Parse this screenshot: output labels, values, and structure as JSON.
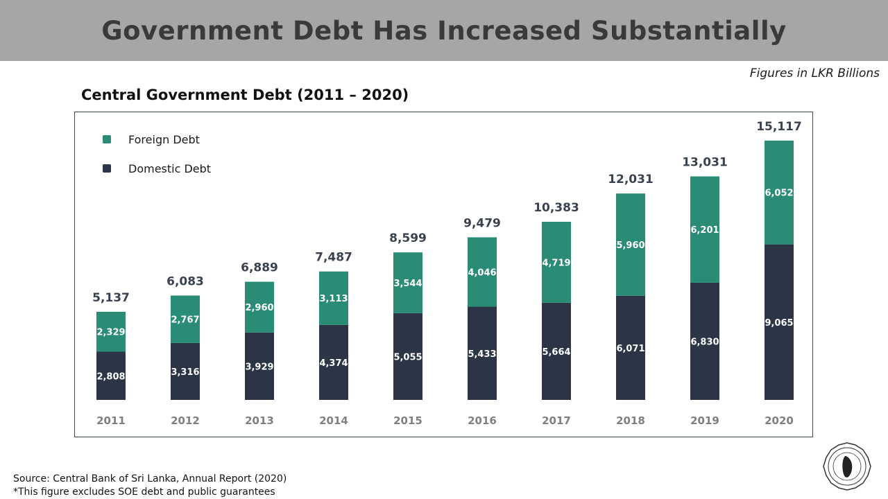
{
  "header": {
    "title": "Government Debt Has Increased Substantially"
  },
  "units_note": "Figures in LKR Billions",
  "footnotes": {
    "source": "Source: Central Bank of Sri Lanka, Annual Report (2020)",
    "note": "*This figure excludes SOE debt and public guarantees"
  },
  "colors": {
    "foreign": "#2a8c76",
    "domestic": "#2b3546",
    "axis_text": "#7f7f7f",
    "total_text": "#3a4250"
  },
  "chart_data": {
    "type": "bar",
    "stacked": true,
    "title": "Central Government Debt (2011 – 2020)",
    "categories": [
      "2011",
      "2012",
      "2013",
      "2014",
      "2015",
      "2016",
      "2017",
      "2018",
      "2019",
      "2020"
    ],
    "series": [
      {
        "name": "Domestic Debt",
        "values": [
          2808,
          3316,
          3929,
          4374,
          5055,
          5433,
          5664,
          6071,
          6830,
          9065
        ]
      },
      {
        "name": "Foreign Debt",
        "values": [
          2329,
          2767,
          2960,
          3113,
          3544,
          4046,
          4719,
          5960,
          6201,
          6052
        ]
      }
    ],
    "totals": [
      5137,
      6083,
      6889,
      7487,
      8599,
      9479,
      10383,
      12031,
      13031,
      15117
    ],
    "legend": {
      "position": "top-left",
      "order": [
        "Foreign Debt",
        "Domestic Debt"
      ]
    },
    "grid": false,
    "xlabel": "",
    "ylabel": ""
  }
}
